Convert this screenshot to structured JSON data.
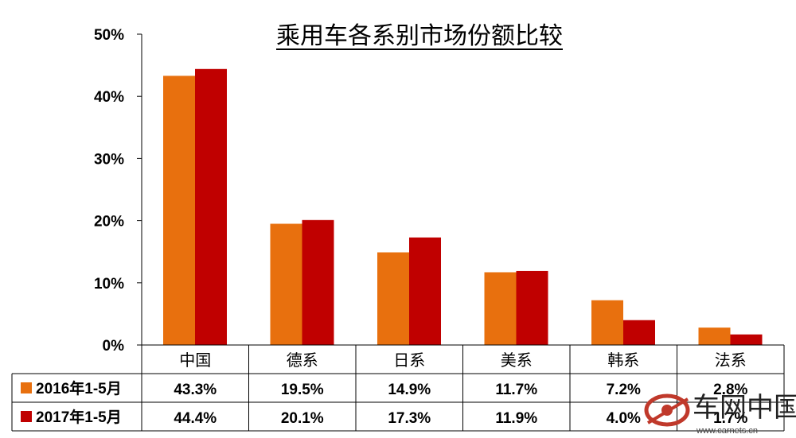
{
  "chart_data": {
    "type": "bar",
    "title": "乘用车各系别市场份额比较",
    "categories": [
      "中国",
      "德系",
      "日系",
      "美系",
      "韩系",
      "法系"
    ],
    "series": [
      {
        "name": "2016年1-5月",
        "values": [
          43.3,
          19.5,
          14.9,
          11.7,
          7.2,
          2.8
        ],
        "labels": [
          "43.3%",
          "19.5%",
          "14.9%",
          "11.7%",
          "7.2%",
          "2.8%"
        ],
        "color": "#e8700e"
      },
      {
        "name": "2017年1-5月",
        "values": [
          44.4,
          20.1,
          17.3,
          11.9,
          4.0,
          1.7
        ],
        "labels": [
          "44.4%",
          "20.1%",
          "17.3%",
          "11.9%",
          "4.0%",
          "1.7%"
        ],
        "color": "#c00000"
      }
    ],
    "ylim": [
      0,
      50
    ],
    "yticks": [
      "0%",
      "10%",
      "20%",
      "30%",
      "40%",
      "50%"
    ],
    "grid": false,
    "legend": "data-table-left"
  },
  "watermark": {
    "brand": "车网中国",
    "url": "www.carnets.cn"
  }
}
